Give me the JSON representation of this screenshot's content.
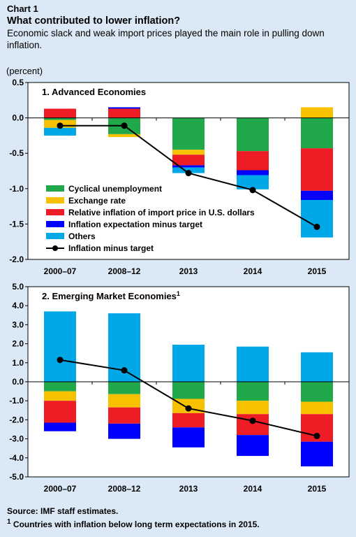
{
  "header": {
    "chart_label": "Chart 1",
    "title": "What contributed to lower inflation?",
    "subtitle": "Economic slack and weak import prices played the main role in pulling down inflation."
  },
  "unit_label": "(percent)",
  "colors": {
    "background": "#dbe8f5",
    "plot_background": "#ffffff",
    "Cyclical unemployment": "#21a84a",
    "Exchange rate": "#f8c100",
    "Relative inflation of import price in U.S. dollars": "#ee1c24",
    "Inflation expectation minus target": "#0000ff",
    "Others": "#00a8e8",
    "Inflation minus target": "#000000"
  },
  "legend": [
    {
      "label": "Cyclical unemployment",
      "kind": "box"
    },
    {
      "label": "Exchange rate",
      "kind": "box"
    },
    {
      "label": "Relative inflation of import price in U.S. dollars",
      "kind": "box"
    },
    {
      "label": "Inflation expectation minus target",
      "kind": "box"
    },
    {
      "label": "Others",
      "kind": "box"
    },
    {
      "label": "Inflation minus target",
      "kind": "line"
    }
  ],
  "chart_data": [
    {
      "type": "bar",
      "stacked": true,
      "title": "1. Advanced Economies",
      "categories": [
        "2000–07",
        "2008–12",
        "2013",
        "2014",
        "2015"
      ],
      "ylim": [
        -2.0,
        0.5
      ],
      "yticks": [
        "0.5",
        "0.0",
        "-0.5",
        "-1.0",
        "-1.5",
        "-2.0"
      ],
      "ytick_values": [
        0.5,
        0.0,
        -0.5,
        -1.0,
        -1.5,
        -2.0
      ],
      "legend_position": "lower-left",
      "series": [
        {
          "name": "Cyclical unemployment",
          "values": [
            -0.03,
            -0.23,
            -0.45,
            -0.47,
            -0.43
          ]
        },
        {
          "name": "Exchange rate",
          "values": [
            -0.11,
            -0.04,
            -0.07,
            0.0,
            0.15
          ]
        },
        {
          "name": "Relative inflation of import price in U.S. dollars",
          "values": [
            0.13,
            0.13,
            -0.15,
            -0.27,
            -0.6
          ]
        },
        {
          "name": "Inflation expectation minus target",
          "values": [
            0.0,
            0.02,
            -0.03,
            -0.07,
            -0.13
          ]
        },
        {
          "name": "Others",
          "values": [
            -0.11,
            0.0,
            -0.08,
            -0.2,
            -0.53
          ]
        }
      ],
      "line": {
        "name": "Inflation minus target",
        "values": [
          -0.11,
          -0.11,
          -0.78,
          -1.02,
          -1.54
        ]
      }
    },
    {
      "type": "bar",
      "stacked": true,
      "title": "2. Emerging Market Economies",
      "title_superscript": "1",
      "categories": [
        "2000–07",
        "2008–12",
        "2013",
        "2014",
        "2015"
      ],
      "ylim": [
        -5.0,
        5.0
      ],
      "yticks": [
        "5.0",
        "4.0",
        "3.0",
        "2.0",
        "1.0",
        "0.0",
        "-1.0",
        "-2.0",
        "-3.0",
        "-4.0",
        "-5.0"
      ],
      "ytick_values": [
        5,
        4,
        3,
        2,
        1,
        0,
        -1,
        -2,
        -3,
        -4,
        -5
      ],
      "series": [
        {
          "name": "Cyclical unemployment",
          "values": [
            -0.5,
            -0.65,
            -0.9,
            -1.0,
            -1.05
          ]
        },
        {
          "name": "Exchange rate",
          "values": [
            -0.5,
            -0.7,
            -0.75,
            -0.7,
            -0.65
          ]
        },
        {
          "name": "Relative inflation of import price in U.S. dollars",
          "values": [
            -1.15,
            -0.85,
            -0.75,
            -1.1,
            -1.45
          ]
        },
        {
          "name": "Inflation expectation minus target",
          "values": [
            -0.45,
            -0.8,
            -1.05,
            -1.1,
            -1.3
          ]
        },
        {
          "name": "Others",
          "values": [
            3.7,
            3.6,
            1.95,
            1.85,
            1.55
          ]
        }
      ],
      "line": {
        "name": "Inflation minus target",
        "values": [
          1.15,
          0.6,
          -1.4,
          -2.05,
          -2.85
        ]
      }
    }
  ],
  "footer": {
    "source": "Source: IMF staff estimates.",
    "note_marker": "1",
    "note": " Countries with inflation below long term expectations in 2015."
  }
}
